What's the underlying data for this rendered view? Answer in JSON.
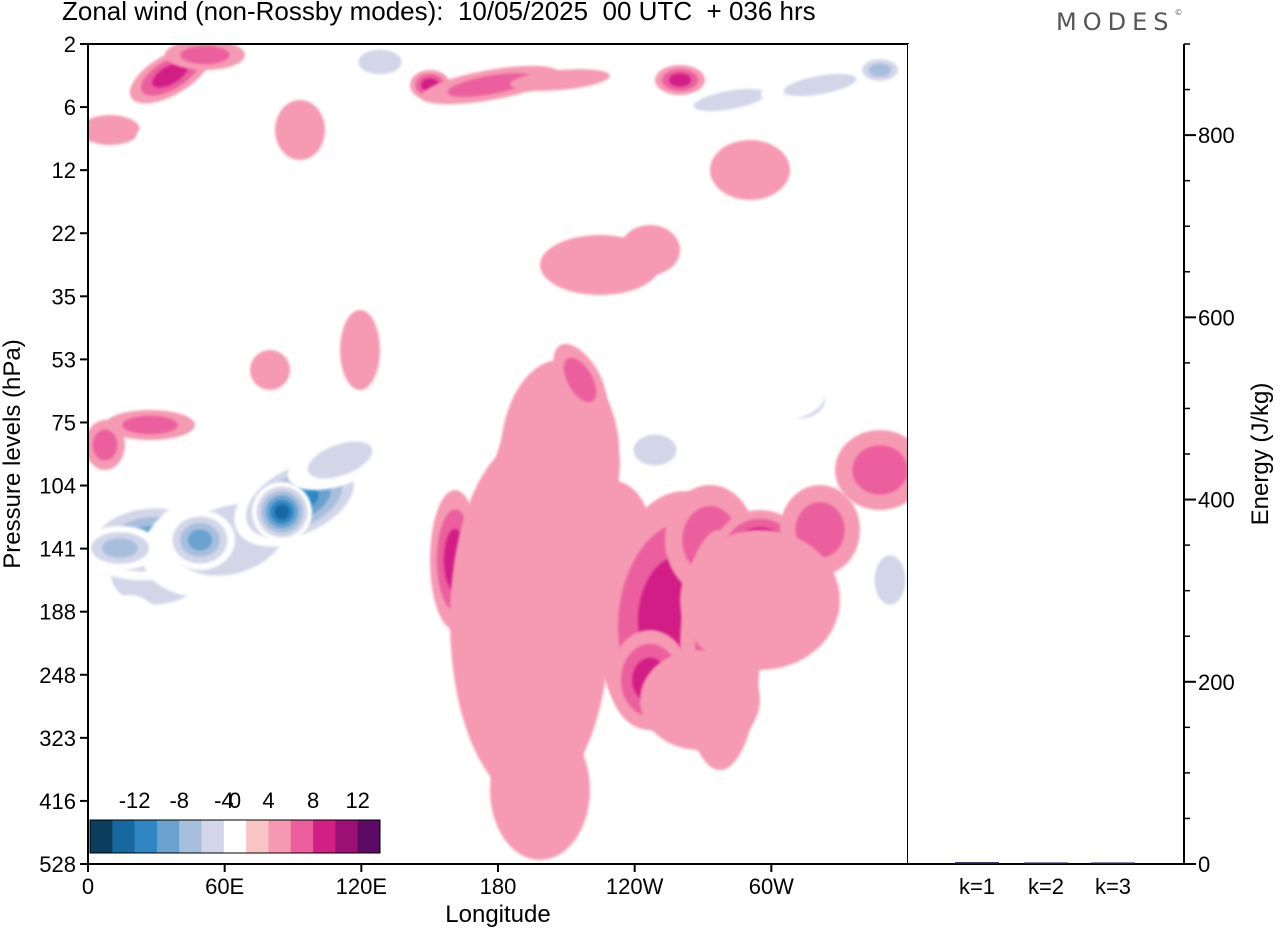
{
  "header": {
    "title": "Zonal wind (non-Rossby modes):  10/05/2025  00 UTC  + 036 hrs",
    "logo": "MODES",
    "logo_mark": "©"
  },
  "chart_data": [
    {
      "type": "heatmap",
      "title": "Zonal wind (non-Rossby modes):  10/05/2025  00 UTC  + 036 hrs",
      "xlabel": "Longitude",
      "ylabel": "Pressure levels (hPa)",
      "x_ticks": [
        "0",
        "60E",
        "120E",
        "180",
        "120W",
        "60W"
      ],
      "x_tick_degrees": [
        0,
        60,
        120,
        180,
        240,
        300
      ],
      "xlim_degrees": [
        0,
        360
      ],
      "y_ticks": [
        "2",
        "6",
        "12",
        "22",
        "35",
        "53",
        "75",
        "104",
        "141",
        "188",
        "248",
        "323",
        "416",
        "528"
      ],
      "colorbar": {
        "labels": [
          "-12",
          "-8",
          "-4",
          "0",
          "4",
          "8",
          "12"
        ],
        "levels": [
          -14,
          -12,
          -10,
          -8,
          -6,
          -4,
          -2,
          2,
          4,
          6,
          8,
          10,
          12,
          14
        ],
        "colors": [
          "#0b3e5c",
          "#1767a0",
          "#2f86c2",
          "#6aa2cf",
          "#a8bedd",
          "#d2d6e8",
          "#ffffff",
          "#f8c4c4",
          "#f59ab2",
          "#ec5e9e",
          "#d21f86",
          "#9a1075",
          "#5c0a64"
        ]
      },
      "features": [
        {
          "value": -10,
          "lon": 80,
          "p": 130,
          "desc": "jet core negative"
        },
        {
          "value": -8,
          "lon": 30,
          "p": 141
        },
        {
          "value": 8,
          "lon": 250,
          "p": 160
        },
        {
          "value": 8,
          "lon": 285,
          "p": 141
        },
        {
          "value": 10,
          "lon": 350,
          "p": 95
        },
        {
          "value": 6,
          "lon": 160,
          "p": 141
        },
        {
          "value": -6,
          "lon": 125,
          "p": 2
        },
        {
          "value": -6,
          "lon": 345,
          "p": 5
        },
        {
          "value": 6,
          "lon": 15,
          "p": 4
        },
        {
          "value": 6,
          "lon": 130,
          "p": 4
        }
      ]
    },
    {
      "type": "bar",
      "ylabel": "Energy (J/kg)",
      "categories": [
        "k=1",
        "k=2",
        "k=3"
      ],
      "values": [
        2,
        1,
        0.5
      ],
      "ylim": [
        0,
        900
      ],
      "y_ticks": [
        0,
        200,
        400,
        600,
        800
      ],
      "bar_color": "#1a1a4e"
    }
  ]
}
